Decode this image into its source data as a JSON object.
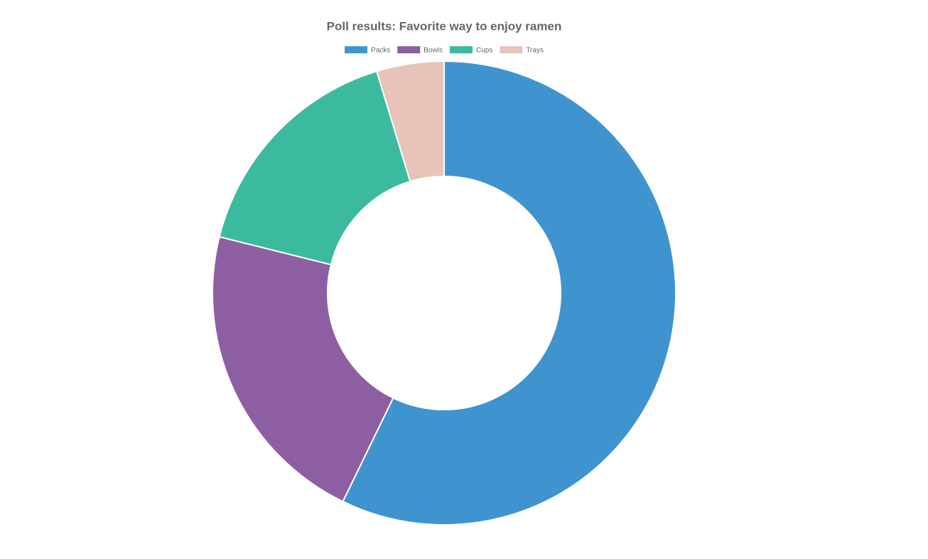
{
  "chart_data": {
    "type": "doughnut",
    "title": "Poll results: Favorite way to enjoy ramen",
    "categories": [
      "Packs",
      "Bowls",
      "Cups",
      "Trays"
    ],
    "values": [
      57.2,
      21.7,
      16.4,
      4.7
    ],
    "colors": [
      "#3f94cf",
      "#8e5ea2",
      "#3cba9f",
      "#e8c3b9"
    ],
    "legend": "top"
  }
}
